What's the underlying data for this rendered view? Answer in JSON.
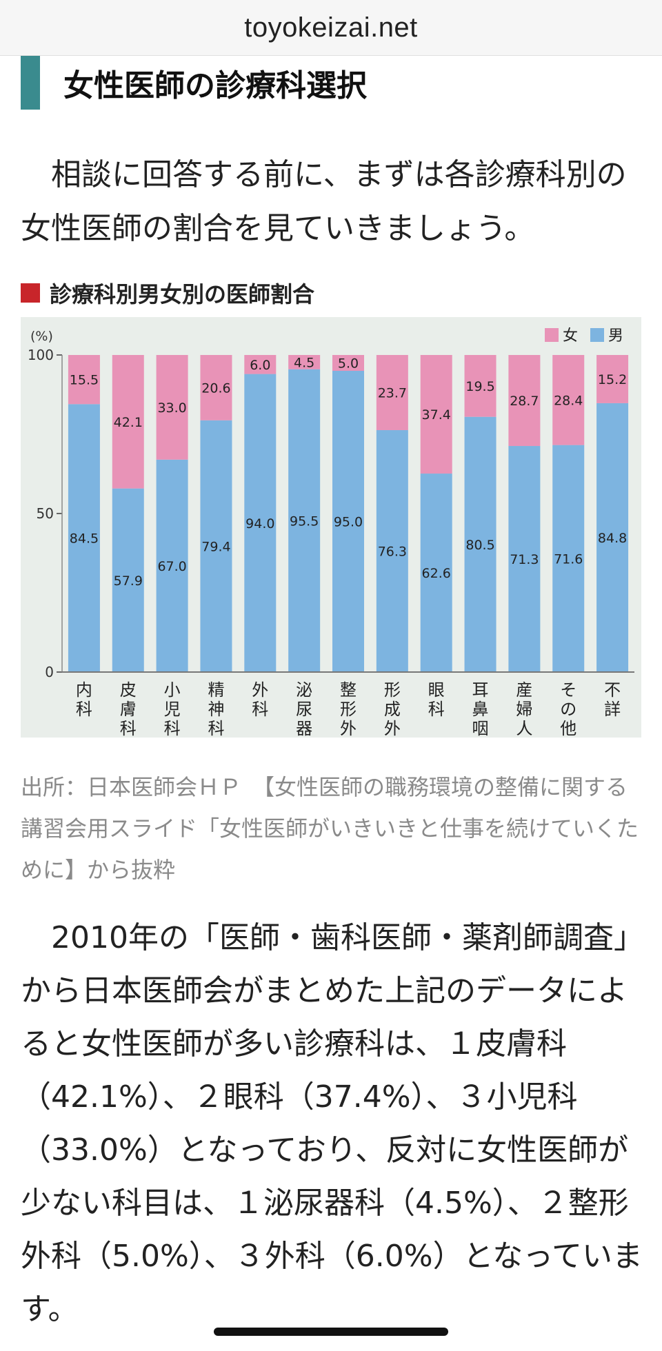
{
  "browser": {
    "domain": "toyokeizai.net"
  },
  "article": {
    "heading": "女性医師の診療科選択",
    "lead": "　相談に回答する前に、まずは各診療科別の女性医師の割合を見ていきましょう。",
    "source": "出所：日本医師会ＨＰ　【女性医師の職務環境の整備に関する講習会用スライド「女性医師がいきいきと仕事を続けていくために】から抜粋",
    "body": "　2010年の「医師・歯科医師・薬剤師調査」から日本医師会がまとめた上記のデータによると女性医師が多い診療科は、１皮膚科（42.1%）、２眼科（37.4%）、３小児科（33.0%）となっており、反対に女性医師が少ない科目は、１泌尿器科（4.5%）、２整形外科（5.0%）、３外科（6.0%）となっています。"
  },
  "chart_data": {
    "type": "bar",
    "stacked": true,
    "title": "診療科別男女別の医師割合",
    "ylabel": "(%)",
    "ylim": [
      0,
      100
    ],
    "yticks": [
      "0",
      "50",
      "100"
    ],
    "legend_position": "top-right",
    "categories": [
      "内科",
      "皮膚科",
      "小児科",
      "精神科",
      "外科",
      "泌尿器科",
      "整形外科",
      "形成外科",
      "眼科",
      "耳鼻咽喉科",
      "産婦人科",
      "その他",
      "不詳"
    ],
    "series": [
      {
        "name": "男",
        "color": "#7db4e0",
        "values": [
          84.5,
          57.9,
          67.0,
          79.4,
          94.0,
          95.5,
          95.0,
          76.3,
          62.6,
          80.5,
          71.3,
          71.6,
          84.8
        ],
        "labels": [
          "84.5",
          "57.9",
          "67.0",
          "79.4",
          "94.0",
          "95.5",
          "95.0",
          "76.3",
          "62.6",
          "80.5",
          "71.3",
          "71.6",
          "84.8"
        ]
      },
      {
        "name": "女",
        "color": "#e893b7",
        "values": [
          15.5,
          42.1,
          33.0,
          20.6,
          6.0,
          4.5,
          5.0,
          23.7,
          37.4,
          19.5,
          28.7,
          28.4,
          15.2
        ],
        "labels": [
          "15.5",
          "42.1",
          "33.0",
          "20.6",
          "6.0",
          "4.5",
          "5.0",
          "23.7",
          "37.4",
          "19.5",
          "28.7",
          "28.4",
          "15.2"
        ]
      }
    ],
    "legend": [
      {
        "name": "女",
        "color": "#e893b7"
      },
      {
        "name": "男",
        "color": "#7db4e0"
      }
    ]
  }
}
